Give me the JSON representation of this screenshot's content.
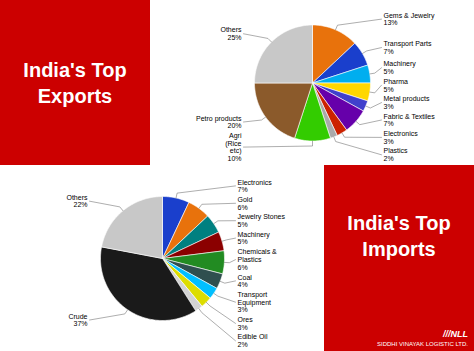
{
  "chart_data": [
    {
      "type": "pie",
      "title": "India's Top\nExports",
      "categories": [
        "Gems & Jewelry",
        "Transport Parts",
        "Machinery",
        "Pharma",
        "Metal products",
        "Fabric & Textiles",
        "Electronics",
        "Plastics",
        "Agri\n(Rice\netc)",
        "Petro products",
        "Others"
      ],
      "values": [
        13,
        7,
        5,
        5,
        3,
        7,
        3,
        2,
        10,
        20,
        25
      ],
      "value_labels": [
        "13%",
        "7%",
        "5%",
        "5%",
        "3%",
        "7%",
        "3%",
        "2%",
        "10%",
        "20%",
        "25%"
      ],
      "colors": [
        "#E8720C",
        "#1A3FCC",
        "#00AEEF",
        "#FFD700",
        "#4040CC",
        "#6600AA",
        "#CC2200",
        "#AAAAAA",
        "#33CC00",
        "#8B5A2B",
        "#C8C8C8"
      ],
      "data_labels": true
    },
    {
      "type": "pie",
      "title": "India's Top\nImports",
      "categories": [
        "Electronics",
        "Gold",
        "Jewelry Stones",
        "Machinery",
        "Chemicals &\nPlastics",
        "Coal",
        "Transport\nEquipment",
        "Ores",
        "Edible Oil",
        "Crude",
        "Others"
      ],
      "values": [
        7,
        6,
        5,
        5,
        6,
        4,
        3,
        3,
        2,
        37,
        22
      ],
      "value_labels": [
        "7%",
        "6%",
        "5%",
        "5%",
        "6%",
        "4%",
        "3%",
        "3%",
        "2%",
        "37%",
        "22%"
      ],
      "colors": [
        "#1A3FCC",
        "#E8720C",
        "#008080",
        "#8B0000",
        "#228B22",
        "#2F4F4F",
        "#00BFFF",
        "#DDDD00",
        "#D3D3D3",
        "#1A1A1A",
        "#C8C8C8"
      ],
      "data_labels": true,
      "annotations": [
        "///NLL",
        "SIDDHI VINAYAK LOGISTIC LTD."
      ]
    }
  ]
}
